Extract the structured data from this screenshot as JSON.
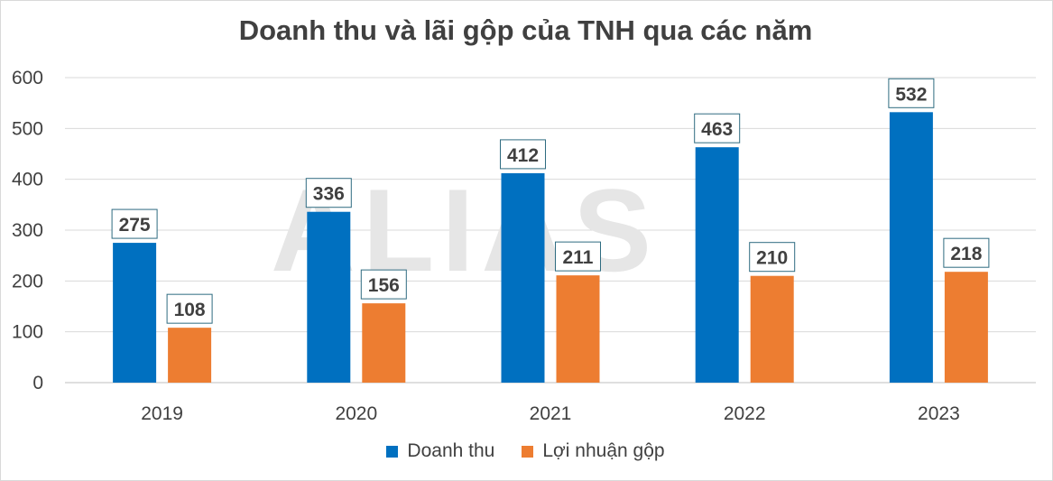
{
  "chart_data": {
    "type": "bar",
    "title": "Doanh thu và lãi gộp của TNH qua các năm",
    "categories": [
      "2019",
      "2020",
      "2021",
      "2022",
      "2023"
    ],
    "series": [
      {
        "name": "Doanh thu",
        "values": [
          275,
          336,
          412,
          463,
          532
        ],
        "color": "#0070c0"
      },
      {
        "name": "Lợi nhuận gộp",
        "values": [
          108,
          156,
          211,
          210,
          218
        ],
        "color": "#ed7d31"
      }
    ],
    "yticks": [
      "0",
      "100",
      "200",
      "300",
      "400",
      "500",
      "600"
    ],
    "ylim": [
      0,
      600
    ],
    "grid": true,
    "legend_position": "bottom",
    "watermark": "ALIAS"
  }
}
